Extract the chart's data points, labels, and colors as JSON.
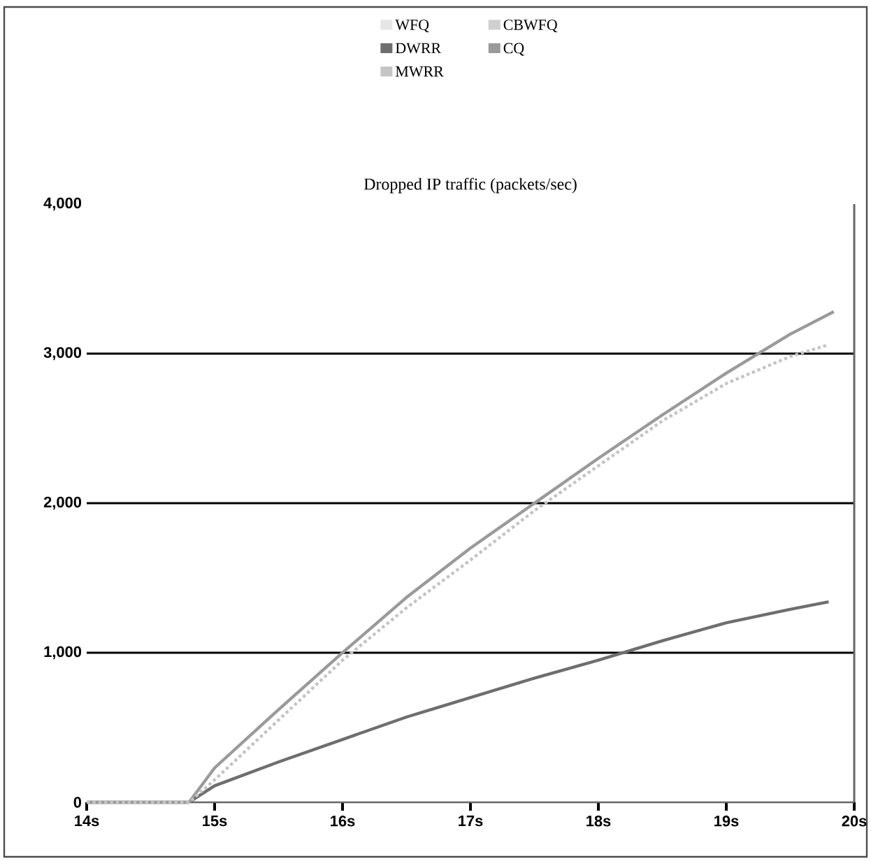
{
  "chart_data": {
    "type": "line",
    "title": "Dropped IP traffic (packets/sec)",
    "xlim": [
      14,
      20
    ],
    "xticks": [
      {
        "value": 14,
        "label": "14s"
      },
      {
        "value": 15,
        "label": "15s"
      },
      {
        "value": 16,
        "label": "16s"
      },
      {
        "value": 17,
        "label": "17s"
      },
      {
        "value": 18,
        "label": "18s"
      },
      {
        "value": 19,
        "label": "19s"
      },
      {
        "value": 20,
        "label": "20s"
      }
    ],
    "ylim": [
      0,
      4000
    ],
    "yticks": [
      {
        "value": 0,
        "label": "0"
      },
      {
        "value": 1000,
        "label": "1,000"
      },
      {
        "value": 2000,
        "label": "2,000"
      },
      {
        "value": 3000,
        "label": "3,000"
      },
      {
        "value": 4000,
        "label": "4,000"
      }
    ],
    "grid": "y",
    "legend": "top",
    "marker": "none",
    "series": [
      {
        "name": "WFQ",
        "color": "#e6e6e6",
        "line_style": "solid"
      },
      {
        "name": "CBWFQ",
        "color": "#cfcfcf",
        "line_style": "solid"
      },
      {
        "name": "DWRR",
        "color": "#6e6e6e",
        "line_style": "solid",
        "x": [
          14,
          14.8,
          15,
          15.5,
          16,
          16.5,
          17,
          17.5,
          18,
          18.5,
          19,
          19.5,
          19.8
        ],
        "values": [
          0,
          0,
          110,
          270,
          420,
          570,
          700,
          830,
          950,
          1080,
          1200,
          1290,
          1340
        ]
      },
      {
        "name": "CQ",
        "color": "#9a9a9a",
        "line_style": "solid",
        "x": [
          14,
          14.8,
          15,
          15.5,
          16,
          16.5,
          17,
          17.5,
          18,
          18.5,
          19,
          19.5,
          19.84
        ],
        "values": [
          0,
          0,
          230,
          620,
          1000,
          1370,
          1700,
          2000,
          2300,
          2590,
          2870,
          3130,
          3280
        ]
      },
      {
        "name": "MWRR",
        "color": "#c4c4c4",
        "line_style": "dotted",
        "x": [
          14,
          14.8,
          15,
          15.5,
          16,
          16.5,
          17,
          17.5,
          18,
          18.5,
          19,
          19.5,
          19.8
        ],
        "values": [
          0,
          0,
          150,
          550,
          950,
          1300,
          1620,
          1950,
          2250,
          2550,
          2800,
          2980,
          3060
        ]
      }
    ]
  }
}
